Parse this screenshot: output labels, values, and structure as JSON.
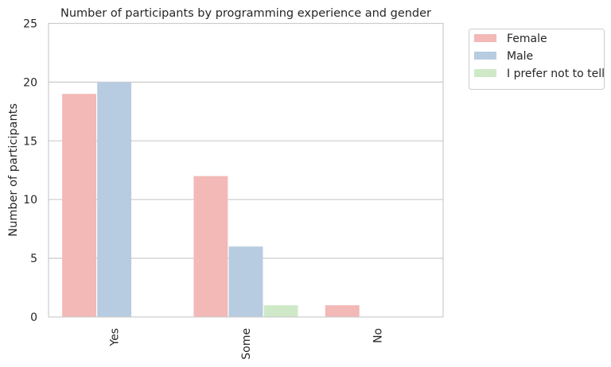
{
  "chart_data": {
    "type": "bar",
    "title": "Number of participants by programming experience and gender",
    "xlabel": "",
    "ylabel": "Number of participants",
    "categories": [
      "Yes",
      "Some",
      "No"
    ],
    "series": [
      {
        "name": "Female",
        "values": [
          19,
          12,
          1
        ],
        "color": "#f2b9b6"
      },
      {
        "name": "Male",
        "values": [
          20,
          6,
          0
        ],
        "color": "#b7cce0"
      },
      {
        "name": "I prefer not to tell",
        "values": [
          0,
          1,
          0
        ],
        "color": "#cfe9c8"
      }
    ],
    "ylim": [
      0,
      25
    ],
    "yticks": [
      0,
      5,
      10,
      15,
      20,
      25
    ],
    "grid": true,
    "legend_position": "outside-top-right"
  }
}
